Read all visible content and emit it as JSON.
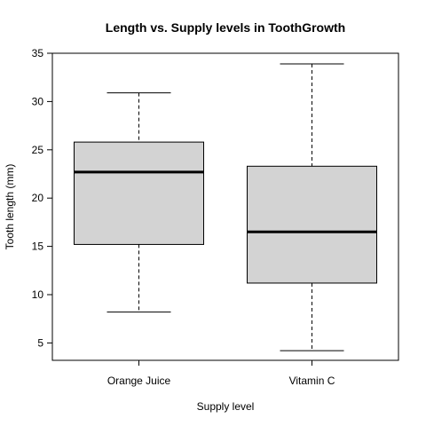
{
  "chart_data": {
    "type": "boxplot",
    "title": "Length vs. Supply levels in ToothGrowth",
    "xlabel": "Supply level",
    "ylabel": "Tooth length (mm)",
    "ylim": [
      3.2,
      35
    ],
    "yticks": [
      5,
      10,
      15,
      20,
      25,
      30,
      35
    ],
    "categories": [
      "Orange Juice",
      "Vitamin C"
    ],
    "boxes": [
      {
        "category": "Orange Juice",
        "min": 8.2,
        "q1": 15.2,
        "median": 22.7,
        "q3": 25.8,
        "max": 30.9
      },
      {
        "category": "Vitamin C",
        "min": 4.2,
        "q1": 11.2,
        "median": 16.5,
        "q3": 23.3,
        "max": 33.9
      }
    ],
    "box_fill": "#d3d3d3",
    "grid": false
  }
}
